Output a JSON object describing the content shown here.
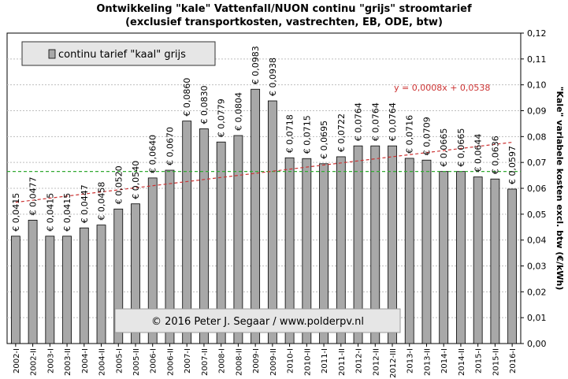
{
  "chart_data": {
    "type": "bar",
    "title": "Ontwikkeling \"kale\" Vattenfall/NUON continu \"grijs\" stroomtarief",
    "subtitle": "(exclusief  transportkosten, vastrechten, EB, ODE, btw)",
    "ylabel": "\"Kale\" variabele kosten excl. btw (€/kWh)",
    "xlabel": "",
    "ylim": [
      0,
      0.12
    ],
    "yticks": [
      "0,00",
      "0,01",
      "0,02",
      "0,03",
      "0,04",
      "0,05",
      "0,06",
      "0,07",
      "0,08",
      "0,09",
      "0,10",
      "0,11",
      "0,12"
    ],
    "grid": true,
    "legend_position": "top-left",
    "series": [
      {
        "name": "continu tarief \"kaal\" grijs",
        "color": "#a8a8a8"
      }
    ],
    "categories": [
      "2002-I",
      "2002-II",
      "2003-I",
      "2003-II",
      "2004-I",
      "2004-II",
      "2005-I",
      "2005-II",
      "2006-I",
      "2006-II",
      "2007-I",
      "2007-II",
      "2008-I",
      "2008-II",
      "2009-I",
      "2009-II",
      "2010-I",
      "2010-II",
      "2011-I",
      "2011-II",
      "2012-I",
      "2012-II",
      "2012-III",
      "2013-I",
      "2013-II",
      "2014-I",
      "2014-II",
      "2015-I",
      "2015-II",
      "2016-I"
    ],
    "values": [
      0.0415,
      0.0477,
      0.0415,
      0.0415,
      0.0447,
      0.0458,
      0.052,
      0.054,
      0.064,
      0.067,
      0.086,
      0.083,
      0.0779,
      0.0804,
      0.0983,
      0.0938,
      0.0718,
      0.0715,
      0.0695,
      0.0722,
      0.0764,
      0.0764,
      0.0764,
      0.0716,
      0.0709,
      0.0665,
      0.0665,
      0.0644,
      0.0636,
      0.0597
    ],
    "data_labels": [
      "€ 0,0415",
      "€ 0,0477",
      "€ 0,0415",
      "€ 0,0415",
      "€ 0,0447",
      "€ 0,0458",
      "€ 0,0520",
      "€ 0,0540",
      "€ 0,0640",
      "€ 0,0670",
      "€ 0,0860",
      "€ 0,0830",
      "€ 0,0779",
      "€ 0,0804",
      "€ 0,0983",
      "€ 0,0938",
      "€ 0,0718",
      "€ 0,0715",
      "€ 0,0695",
      "€ 0,0722",
      "€ 0,0764",
      "€ 0,0764",
      "€ 0,0764",
      "€ 0,0716",
      "€ 0,0709",
      "€ 0,0665",
      "€ 0,0665",
      "€ 0,0644",
      "€ 0,0636",
      "€ 0,0597"
    ],
    "trendline": {
      "label": "y = 0,0008x + 0,0538",
      "slope": 0.0008,
      "intercept": 0.0538,
      "color": "#cc3333"
    },
    "reference_line": {
      "value": 0.0665,
      "color": "#33aa33"
    },
    "annotation": "© 2016 Peter J. Segaar / www.polderpv.nl"
  }
}
